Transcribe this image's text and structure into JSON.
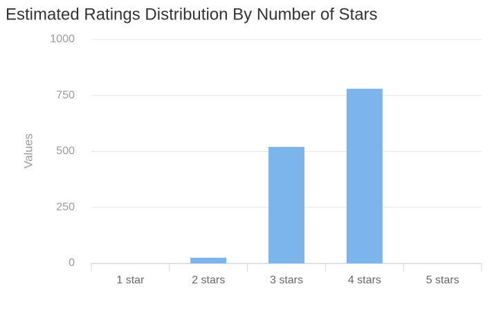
{
  "chart_data": {
    "type": "bar",
    "title": "Estimated Ratings Distribution By Number of Stars",
    "y_label": "Values",
    "categories": [
      "1 star",
      "2 stars",
      "3 stars",
      "4 stars",
      "5 stars"
    ],
    "values": [
      0,
      25,
      520,
      780,
      0
    ],
    "color": "#7cb5ec",
    "ylim": [
      0,
      1000
    ],
    "yticks": [
      0,
      250,
      500,
      750,
      1000
    ],
    "grid": true
  }
}
